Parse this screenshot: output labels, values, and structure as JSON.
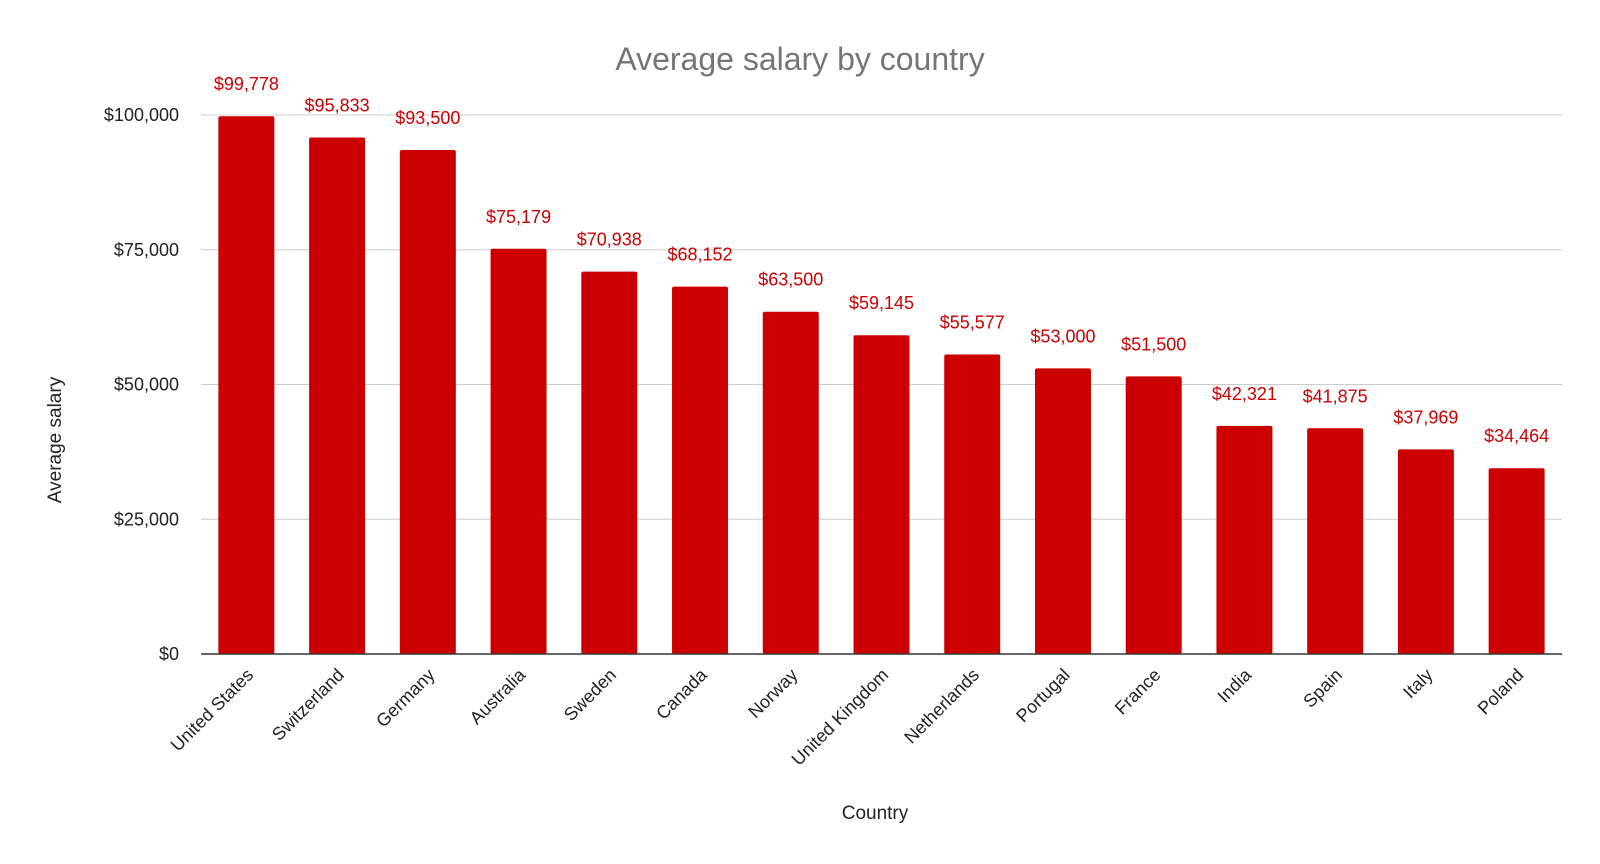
{
  "chart_data": {
    "type": "bar",
    "title": "Average salary by country",
    "xlabel": "Country",
    "ylabel": "Average salary",
    "categories": [
      "United States",
      "Switzerland",
      "Germany",
      "Australia",
      "Sweden",
      "Canada",
      "Norway",
      "United Kingdom",
      "Netherlands",
      "Portugal",
      "France",
      "India",
      "Spain",
      "Italy",
      "Poland"
    ],
    "values": [
      99778,
      95833,
      93500,
      75179,
      70938,
      68152,
      63500,
      59145,
      55577,
      53000,
      51500,
      42321,
      41875,
      37969,
      34464
    ],
    "data_labels": [
      "$99,778",
      "$95,833",
      "$93,500",
      "$75,179",
      "$70,938",
      "$68,152",
      "$63,500",
      "$59,145",
      "$55,577",
      "$53,000",
      "$51,500",
      "$42,321",
      "$41,875",
      "$37,969",
      "$34,464"
    ],
    "ylim": [
      0,
      100000
    ],
    "yticks": [
      0,
      25000,
      50000,
      75000,
      100000
    ],
    "ytick_labels": [
      "$0",
      "$25,000",
      "$50,000",
      "$75,000",
      "$100,000"
    ],
    "grid": true,
    "legend": "none",
    "colors": {
      "bar": "#cc0000",
      "data_label": "#cc0000",
      "title": "#757575",
      "grid": "#cccccc",
      "axis": "#333333",
      "text": "#222222"
    }
  }
}
